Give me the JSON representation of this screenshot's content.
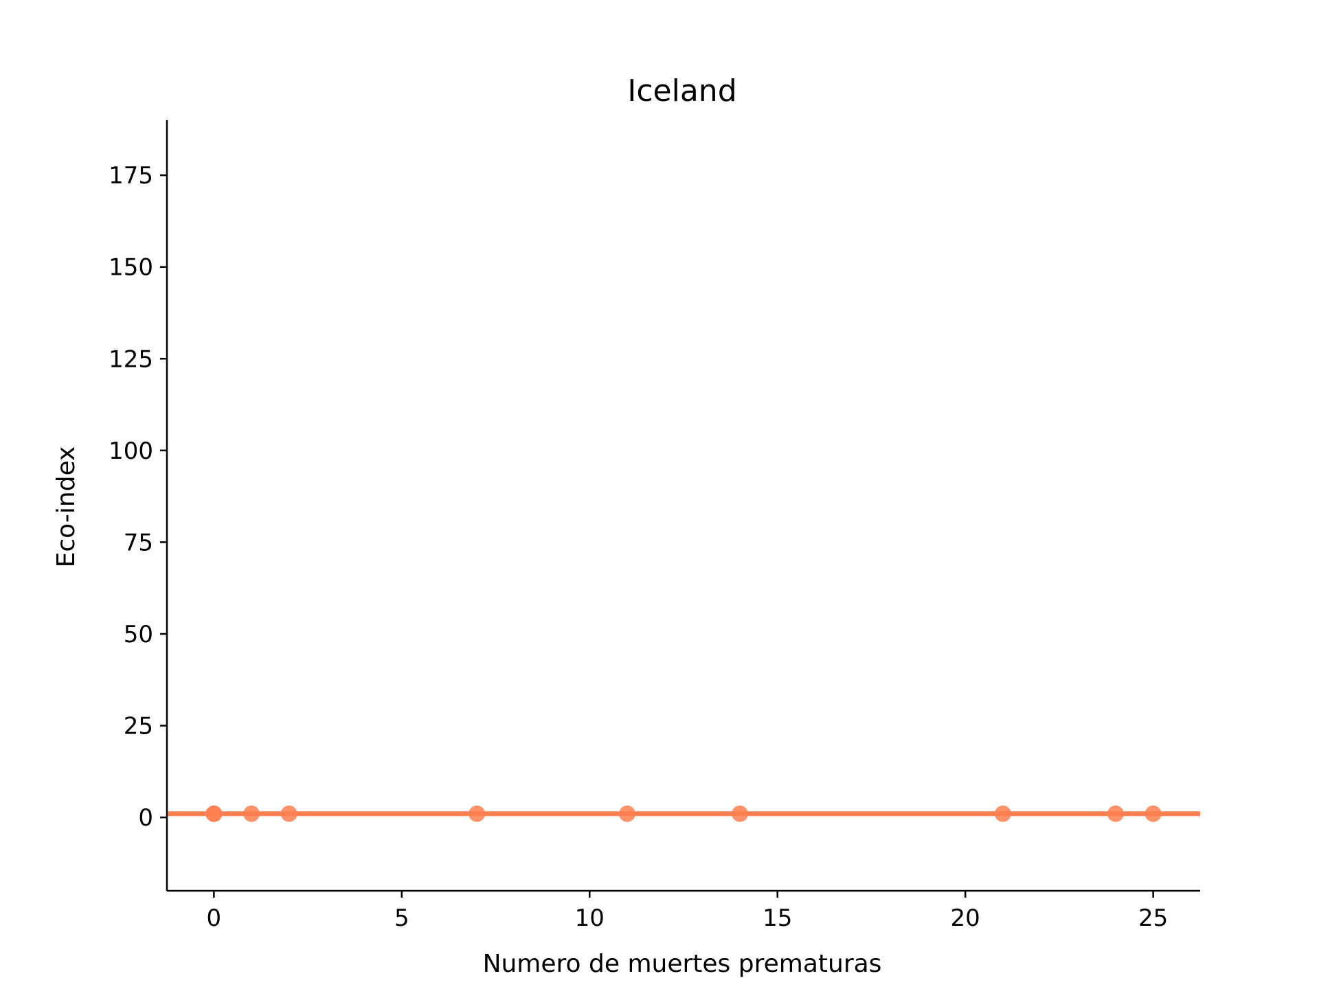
{
  "chart_data": {
    "type": "scatter",
    "title": "Iceland",
    "xlabel": "Numero de muertes prematuras",
    "ylabel": "Eco-index",
    "xlim": [
      -1.25,
      26.25
    ],
    "ylim": [
      -20,
      190
    ],
    "xticks": [
      0,
      5,
      10,
      15,
      20,
      25
    ],
    "yticks": [
      0,
      25,
      50,
      75,
      100,
      125,
      150,
      175
    ],
    "grid": false,
    "color": "#ff7f50",
    "points": [
      {
        "x": 0,
        "y": 1
      },
      {
        "x": 0,
        "y": 1
      },
      {
        "x": 1,
        "y": 1
      },
      {
        "x": 2,
        "y": 1
      },
      {
        "x": 7,
        "y": 1
      },
      {
        "x": 11,
        "y": 1
      },
      {
        "x": 14,
        "y": 1
      },
      {
        "x": 21,
        "y": 1
      },
      {
        "x": 24,
        "y": 1
      },
      {
        "x": 25,
        "y": 1
      }
    ],
    "fit_line": {
      "y": 1
    }
  }
}
